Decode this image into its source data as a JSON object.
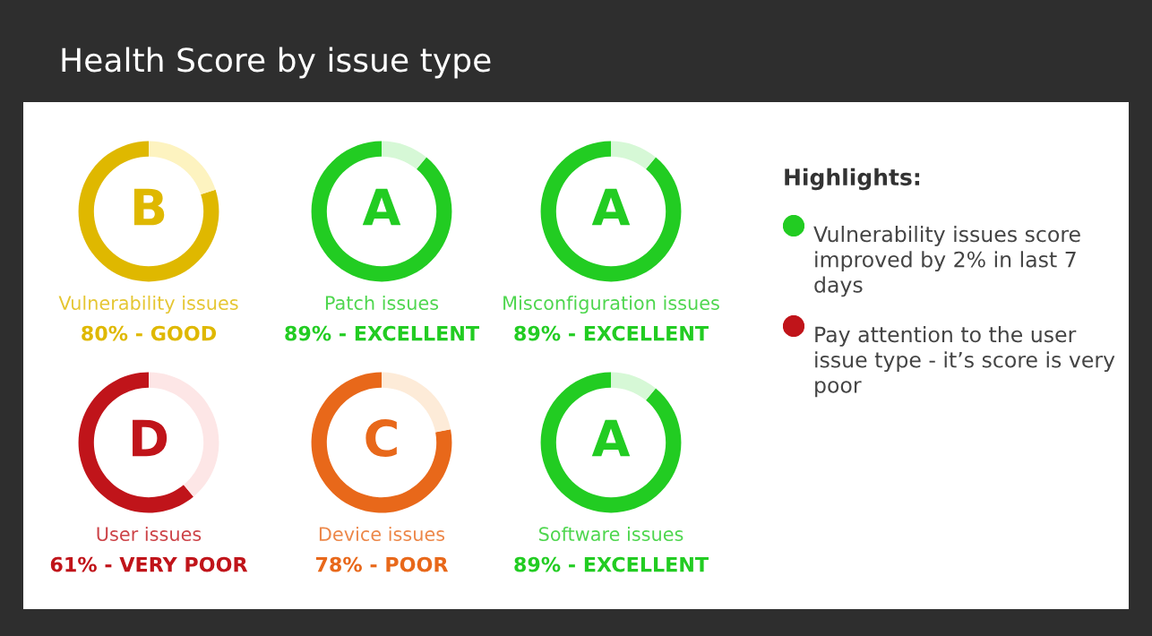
{
  "chart_data": [
    {
      "type": "other",
      "title": "Health Score by issue type"
    },
    {
      "type": "donut",
      "title": "Vulnerability issues",
      "subtitle": "80% - GOOD",
      "annotations": [
        "B"
      ],
      "categories": [
        null,
        null
      ],
      "values": [
        80,
        20
      ],
      "colors": [
        "#dfb800",
        "#fdf3c0"
      ]
    },
    {
      "type": "donut",
      "title": "Patch issues",
      "subtitle": "89% - EXCELLENT",
      "annotations": [
        "A"
      ],
      "categories": [
        null,
        null
      ],
      "values": [
        89,
        11
      ],
      "colors": [
        "#22cc22",
        "#d6f8d6"
      ]
    },
    {
      "type": "donut",
      "title": "Misconfiguration issues",
      "subtitle": "89% - EXCELLENT",
      "annotations": [
        "A"
      ],
      "categories": [
        null,
        null
      ],
      "values": [
        89,
        11
      ],
      "colors": [
        "#22cc22",
        "#d6f8d6"
      ]
    },
    {
      "type": "donut",
      "title": "User issues",
      "subtitle": "61% - VERY POOR",
      "annotations": [
        "D"
      ],
      "categories": [
        null,
        null
      ],
      "values": [
        61,
        39
      ],
      "colors": [
        "#c0141a",
        "#fde6e6"
      ]
    },
    {
      "type": "donut",
      "title": "Device issues",
      "subtitle": "78% - POOR",
      "annotations": [
        "C"
      ],
      "categories": [
        null,
        null
      ],
      "values": [
        78,
        22
      ],
      "colors": [
        "#e8681a",
        "#fdebd8"
      ]
    },
    {
      "type": "donut",
      "title": "Software issues",
      "subtitle": "89% - EXCELLENT",
      "annotations": [
        "A"
      ],
      "categories": [
        null,
        null
      ],
      "values": [
        89,
        11
      ],
      "colors": [
        "#22cc22",
        "#d6f8d6"
      ]
    },
    {
      "type": "other",
      "title": "Highlights:",
      "annotations": [
        "Vulnerability issues score improved by 2% in last 7 days",
        "Pay attention to the user issue type - it’s score is very poor"
      ],
      "colors": [
        "#22cc22",
        "#c0141a"
      ]
    }
  ]
}
